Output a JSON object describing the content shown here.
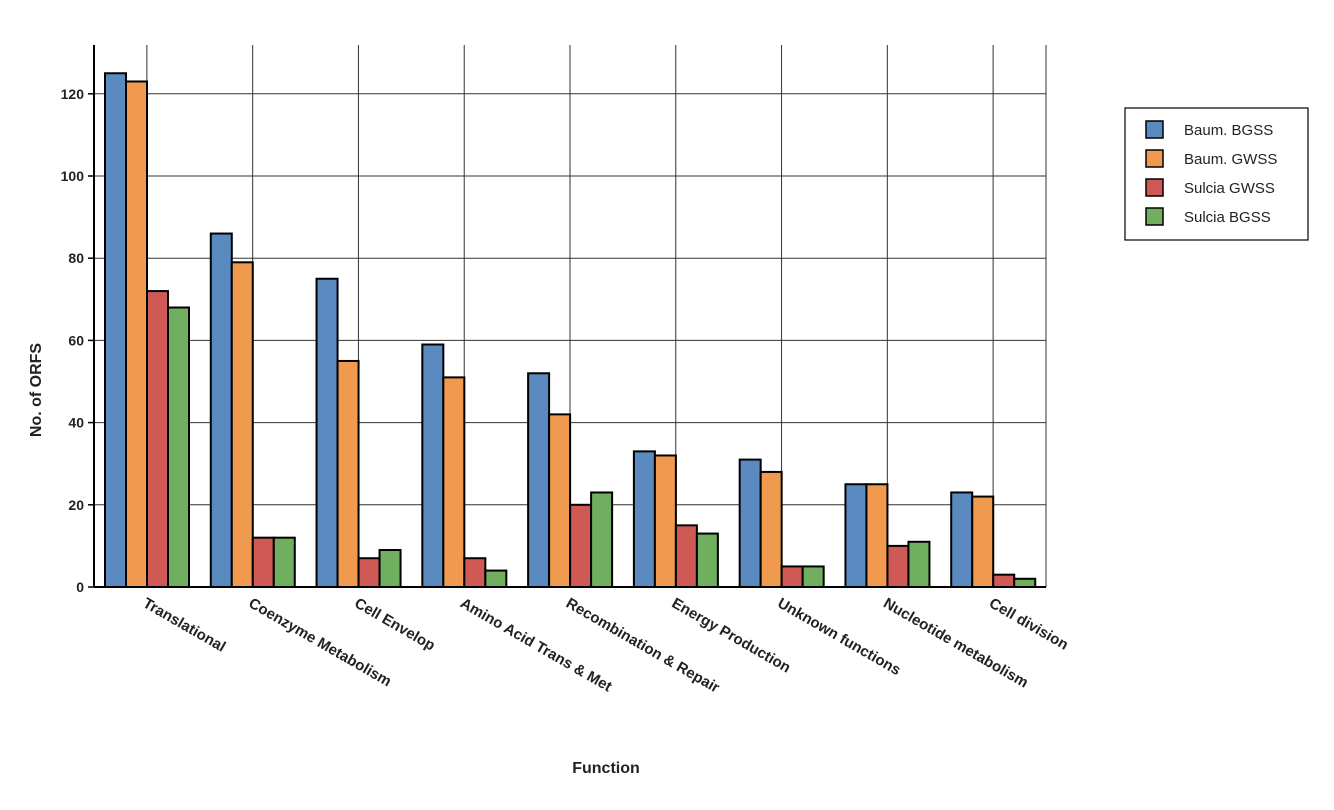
{
  "chart_data": {
    "type": "bar",
    "title": "",
    "xlabel": "Function",
    "ylabel": "No. of ORFS",
    "ylim": [
      0,
      130
    ],
    "yticks": [
      0,
      20,
      40,
      60,
      80,
      100,
      120
    ],
    "grid": true,
    "legend_position": "right",
    "categories": [
      "Translational",
      "Coenzyme Metabolism",
      "Cell Envelop",
      "Amino Acid Trans & Met",
      "Recombination & Repair",
      "Energy Production",
      "Unknown functions",
      "Nucleotide metabolism",
      "Cell division"
    ],
    "series": [
      {
        "name": "Baum. BGSS",
        "color": "#5b8ac0",
        "values": [
          125,
          86,
          75,
          59,
          52,
          33,
          31,
          25,
          23
        ]
      },
      {
        "name": "Baum. GWSS",
        "color": "#ef9a4f",
        "values": [
          123,
          79,
          55,
          51,
          42,
          32,
          28,
          25,
          22
        ]
      },
      {
        "name": "Sulcia GWSS",
        "color": "#cf5a55",
        "values": [
          72,
          12,
          7,
          7,
          20,
          15,
          5,
          10,
          3
        ]
      },
      {
        "name": "Sulcia BGSS",
        "color": "#6faf5f",
        "values": [
          68,
          12,
          9,
          4,
          23,
          13,
          5,
          11,
          2
        ]
      }
    ]
  }
}
